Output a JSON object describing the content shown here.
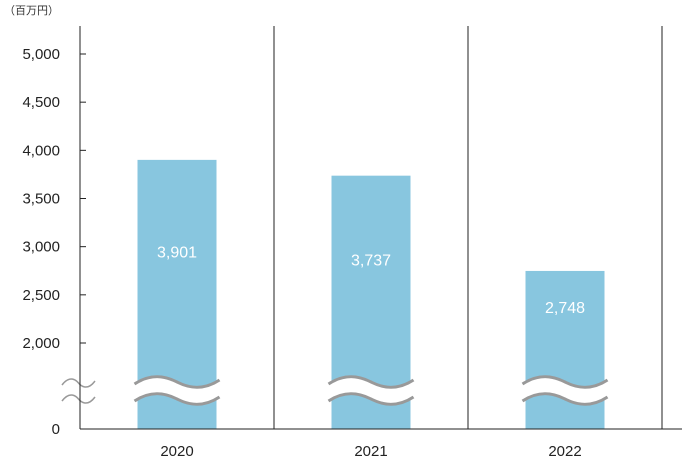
{
  "chart_data": {
    "type": "bar",
    "unit_label": "（百万円）",
    "categories": [
      "2020",
      "2021",
      "2022"
    ],
    "values": [
      3901,
      3737,
      2748
    ],
    "data_labels": [
      "3,901",
      "3,737",
      "2,748"
    ],
    "y_ticks": [
      0,
      2000,
      2500,
      3000,
      3500,
      4000,
      4500,
      5000
    ],
    "y_tick_labels": [
      "0",
      "2,000",
      "2,500",
      "3,000",
      "3,500",
      "4,000",
      "4,500",
      "5,000"
    ],
    "ylim": [
      0,
      5250
    ],
    "axis_break": true,
    "grid": false,
    "colors": {
      "bar": "#88c6df",
      "axis": "#222222",
      "break": "#999999"
    }
  }
}
